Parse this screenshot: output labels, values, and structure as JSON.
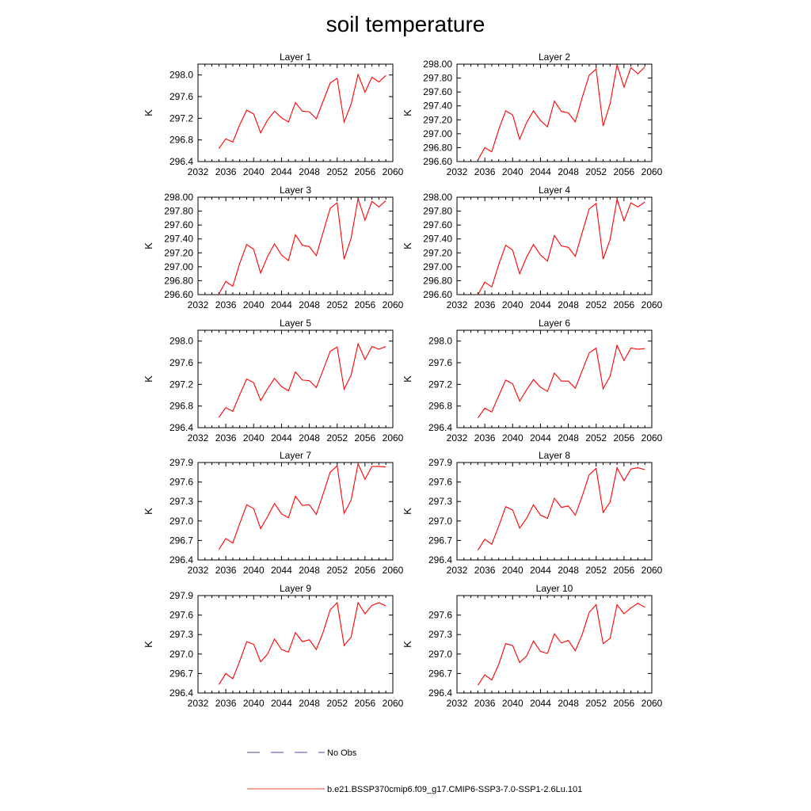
{
  "title": "soil temperature",
  "legend": {
    "items": [
      {
        "label": "No Obs",
        "color": "#4a4ab0",
        "dash": true
      },
      {
        "label": "b.e21.BSSP370cmip6.f09_g17.CMIP6-SSP3-7.0-SSP1-2.6Lu.101",
        "color": "#e8413a",
        "dash": false
      }
    ]
  },
  "series_color": "#ff0000",
  "chart_data": [
    {
      "type": "line",
      "title": "Layer 1",
      "ylabel": "K",
      "xlim": [
        2032,
        2060
      ],
      "xticks": [
        "2032",
        "2036",
        "2040",
        "2044",
        "2048",
        "2052",
        "2056",
        "2060"
      ],
      "ylim": [
        296.4,
        298.2
      ],
      "yticks": [
        "296.4",
        "296.8",
        "297.2",
        "297.6",
        "298.0"
      ],
      "x": [
        2035,
        2036,
        2037,
        2038,
        2039,
        2040,
        2041,
        2042,
        2043,
        2044,
        2045,
        2046,
        2047,
        2048,
        2049,
        2050,
        2051,
        2052,
        2053,
        2054,
        2055,
        2056,
        2057,
        2058,
        2059
      ],
      "y": [
        296.64,
        296.82,
        296.76,
        297.08,
        297.35,
        297.28,
        296.93,
        297.17,
        297.33,
        297.21,
        297.13,
        297.49,
        297.33,
        297.32,
        297.19,
        297.52,
        297.85,
        297.94,
        297.13,
        297.46,
        298.01,
        297.68,
        297.96,
        297.87,
        297.99
      ]
    },
    {
      "type": "line",
      "title": "Layer 2",
      "ylabel": "K",
      "xlim": [
        2032,
        2060
      ],
      "xticks": [
        "2032",
        "2036",
        "2040",
        "2044",
        "2048",
        "2052",
        "2056",
        "2060"
      ],
      "ylim": [
        296.6,
        298.0
      ],
      "yticks": [
        "296.60",
        "296.80",
        "297.00",
        "297.20",
        "297.40",
        "297.60",
        "297.80",
        "298.00"
      ],
      "x": [
        2035,
        2036,
        2037,
        2038,
        2039,
        2040,
        2041,
        2042,
        2043,
        2044,
        2045,
        2046,
        2047,
        2048,
        2049,
        2050,
        2051,
        2052,
        2053,
        2054,
        2055,
        2056,
        2057,
        2058,
        2059
      ],
      "y": [
        296.62,
        296.8,
        296.74,
        297.06,
        297.33,
        297.27,
        296.92,
        297.16,
        297.33,
        297.19,
        297.1,
        297.47,
        297.32,
        297.3,
        297.17,
        297.52,
        297.84,
        297.93,
        297.11,
        297.43,
        297.99,
        297.67,
        297.95,
        297.86,
        297.96
      ]
    },
    {
      "type": "line",
      "title": "Layer 3",
      "ylabel": "K",
      "xlim": [
        2032,
        2060
      ],
      "xticks": [
        "2032",
        "2036",
        "2040",
        "2044",
        "2048",
        "2052",
        "2056",
        "2060"
      ],
      "ylim": [
        296.6,
        298.0
      ],
      "yticks": [
        "296.60",
        "296.80",
        "297.00",
        "297.20",
        "297.40",
        "297.60",
        "297.80",
        "298.00"
      ],
      "x": [
        2035,
        2036,
        2037,
        2038,
        2039,
        2040,
        2041,
        2042,
        2043,
        2044,
        2045,
        2046,
        2047,
        2048,
        2049,
        2050,
        2051,
        2052,
        2053,
        2054,
        2055,
        2056,
        2057,
        2058,
        2059
      ],
      "y": [
        296.61,
        296.79,
        296.72,
        297.05,
        297.32,
        297.25,
        296.91,
        297.15,
        297.33,
        297.17,
        297.09,
        297.46,
        297.31,
        297.29,
        297.16,
        297.5,
        297.84,
        297.92,
        297.11,
        297.41,
        297.98,
        297.67,
        297.94,
        297.86,
        297.95
      ]
    },
    {
      "type": "line",
      "title": "Layer 4",
      "ylabel": "K",
      "xlim": [
        2032,
        2060
      ],
      "xticks": [
        "2032",
        "2036",
        "2040",
        "2044",
        "2048",
        "2052",
        "2056",
        "2060"
      ],
      "ylim": [
        296.6,
        298.0
      ],
      "yticks": [
        "296.60",
        "296.80",
        "297.00",
        "297.20",
        "297.40",
        "297.60",
        "297.80",
        "298.00"
      ],
      "x": [
        2035,
        2036,
        2037,
        2038,
        2039,
        2040,
        2041,
        2042,
        2043,
        2044,
        2045,
        2046,
        2047,
        2048,
        2049,
        2050,
        2051,
        2052,
        2053,
        2054,
        2055,
        2056,
        2057,
        2058,
        2059
      ],
      "y": [
        296.6,
        296.78,
        296.71,
        297.03,
        297.31,
        297.24,
        296.9,
        297.14,
        297.32,
        297.17,
        297.08,
        297.45,
        297.3,
        297.28,
        297.15,
        297.49,
        297.83,
        297.91,
        297.11,
        297.39,
        297.97,
        297.66,
        297.92,
        297.86,
        297.93
      ]
    },
    {
      "type": "line",
      "title": "Layer 5",
      "ylabel": "K",
      "xlim": [
        2032,
        2060
      ],
      "xticks": [
        "2032",
        "2036",
        "2040",
        "2044",
        "2048",
        "2052",
        "2056",
        "2060"
      ],
      "ylim": [
        296.4,
        298.2
      ],
      "yticks": [
        "296.4",
        "296.8",
        "297.2",
        "297.6",
        "298.0"
      ],
      "x": [
        2035,
        2036,
        2037,
        2038,
        2039,
        2040,
        2041,
        2042,
        2043,
        2044,
        2045,
        2046,
        2047,
        2048,
        2049,
        2050,
        2051,
        2052,
        2053,
        2054,
        2055,
        2056,
        2057,
        2058,
        2059
      ],
      "y": [
        296.59,
        296.77,
        296.7,
        297.01,
        297.3,
        297.23,
        296.9,
        297.12,
        297.31,
        297.16,
        297.08,
        297.43,
        297.28,
        297.27,
        297.14,
        297.47,
        297.81,
        297.89,
        297.11,
        297.37,
        297.95,
        297.66,
        297.9,
        297.85,
        297.9
      ]
    },
    {
      "type": "line",
      "title": "Layer 6",
      "ylabel": "K",
      "xlim": [
        2032,
        2060
      ],
      "xticks": [
        "2032",
        "2036",
        "2040",
        "2044",
        "2048",
        "2052",
        "2056",
        "2060"
      ],
      "ylim": [
        296.4,
        298.2
      ],
      "yticks": [
        "296.4",
        "296.8",
        "297.2",
        "297.6",
        "298.0"
      ],
      "x": [
        2035,
        2036,
        2037,
        2038,
        2039,
        2040,
        2041,
        2042,
        2043,
        2044,
        2045,
        2046,
        2047,
        2048,
        2049,
        2050,
        2051,
        2052,
        2053,
        2054,
        2055,
        2056,
        2057,
        2058,
        2059
      ],
      "y": [
        296.58,
        296.76,
        296.69,
        296.99,
        297.28,
        297.21,
        296.89,
        297.1,
        297.29,
        297.15,
        297.07,
        297.41,
        297.26,
        297.26,
        297.13,
        297.45,
        297.78,
        297.87,
        297.12,
        297.35,
        297.92,
        297.64,
        297.87,
        297.85,
        297.86
      ]
    },
    {
      "type": "line",
      "title": "Layer 7",
      "ylabel": "K",
      "xlim": [
        2032,
        2060
      ],
      "xticks": [
        "2032",
        "2036",
        "2040",
        "2044",
        "2048",
        "2052",
        "2056",
        "2060"
      ],
      "ylim": [
        296.4,
        297.9
      ],
      "yticks": [
        "296.4",
        "296.7",
        "297.0",
        "297.3",
        "297.6",
        "297.9"
      ],
      "x": [
        2035,
        2036,
        2037,
        2038,
        2039,
        2040,
        2041,
        2042,
        2043,
        2044,
        2045,
        2046,
        2047,
        2048,
        2049,
        2050,
        2051,
        2052,
        2053,
        2054,
        2055,
        2056,
        2057,
        2058,
        2059
      ],
      "y": [
        296.56,
        296.73,
        296.66,
        296.96,
        297.25,
        297.19,
        296.88,
        297.07,
        297.27,
        297.11,
        297.05,
        297.38,
        297.24,
        297.25,
        297.1,
        297.42,
        297.75,
        297.85,
        297.12,
        297.32,
        297.88,
        297.64,
        297.84,
        297.84,
        297.83
      ]
    },
    {
      "type": "line",
      "title": "Layer 8",
      "ylabel": "K",
      "xlim": [
        2032,
        2060
      ],
      "xticks": [
        "2032",
        "2036",
        "2040",
        "2044",
        "2048",
        "2052",
        "2056",
        "2060"
      ],
      "ylim": [
        296.4,
        297.9
      ],
      "yticks": [
        "296.4",
        "296.7",
        "297.0",
        "297.3",
        "297.6",
        "297.9"
      ],
      "x": [
        2035,
        2036,
        2037,
        2038,
        2039,
        2040,
        2041,
        2042,
        2043,
        2044,
        2045,
        2046,
        2047,
        2048,
        2049,
        2050,
        2051,
        2052,
        2053,
        2054,
        2055,
        2056,
        2057,
        2058,
        2059
      ],
      "y": [
        296.55,
        296.72,
        296.64,
        296.92,
        297.22,
        297.17,
        296.89,
        297.04,
        297.25,
        297.09,
        297.04,
        297.35,
        297.21,
        297.23,
        297.09,
        297.38,
        297.71,
        297.81,
        297.13,
        297.29,
        297.82,
        297.62,
        297.8,
        297.82,
        297.79
      ]
    },
    {
      "type": "line",
      "title": "Layer 9",
      "ylabel": "K",
      "xlim": [
        2032,
        2060
      ],
      "xticks": [
        "2032",
        "2036",
        "2040",
        "2044",
        "2048",
        "2052",
        "2056",
        "2060"
      ],
      "ylim": [
        296.4,
        297.9
      ],
      "yticks": [
        "296.4",
        "296.7",
        "297.0",
        "297.3",
        "297.6",
        "297.9"
      ],
      "x": [
        2035,
        2036,
        2037,
        2038,
        2039,
        2040,
        2041,
        2042,
        2043,
        2044,
        2045,
        2046,
        2047,
        2048,
        2049,
        2050,
        2051,
        2052,
        2053,
        2054,
        2055,
        2056,
        2057,
        2058,
        2059
      ],
      "y": [
        296.53,
        296.7,
        296.62,
        296.89,
        297.19,
        297.15,
        296.88,
        297.0,
        297.23,
        297.07,
        297.03,
        297.33,
        297.19,
        297.22,
        297.07,
        297.34,
        297.68,
        297.79,
        297.13,
        297.26,
        297.79,
        297.62,
        297.75,
        297.79,
        297.74
      ]
    },
    {
      "type": "line",
      "title": "Layer 10",
      "ylabel": "K",
      "xlim": [
        2032,
        2060
      ],
      "xticks": [
        "2032",
        "2036",
        "2040",
        "2044",
        "2048",
        "2052",
        "2056",
        "2060"
      ],
      "ylim": [
        296.4,
        297.9
      ],
      "yticks": [
        "296.4",
        "296.7",
        "297.0",
        "297.3",
        "297.6"
      ],
      "x": [
        2035,
        2036,
        2037,
        2038,
        2039,
        2040,
        2041,
        2042,
        2043,
        2044,
        2045,
        2046,
        2047,
        2048,
        2049,
        2050,
        2051,
        2052,
        2053,
        2054,
        2055,
        2056,
        2057,
        2058,
        2059
      ],
      "y": [
        296.52,
        296.68,
        296.6,
        296.84,
        297.16,
        297.13,
        296.87,
        296.97,
        297.2,
        297.04,
        297.01,
        297.31,
        297.17,
        297.21,
        297.05,
        297.3,
        297.64,
        297.76,
        297.16,
        297.24,
        297.76,
        297.62,
        297.71,
        297.78,
        297.72
      ]
    }
  ]
}
